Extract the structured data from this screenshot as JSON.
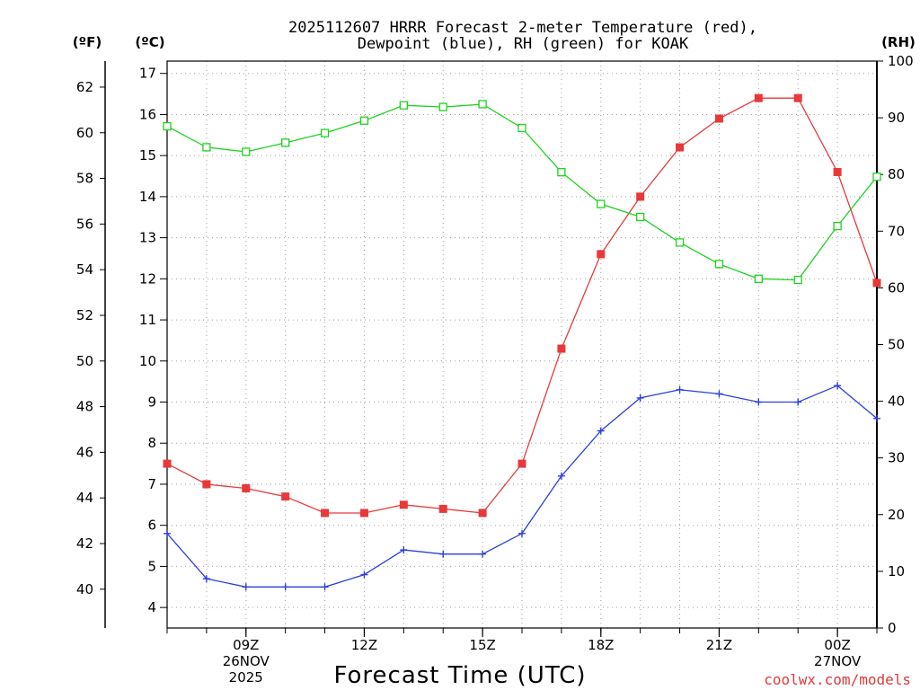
{
  "title": {
    "line1": "2025112607 HRRR Forecast 2-meter Temperature (red),",
    "line2": "Dewpoint (blue), RH (green) for KOAK"
  },
  "units": {
    "fahrenheit": "(ºF)",
    "celsius": "(ºC)",
    "rh": "(RH)"
  },
  "x_axis": {
    "title": "Forecast Time (UTC)",
    "ticks": [
      {
        "t": 9,
        "label": "09Z",
        "date": "26NOV",
        "year": "2025"
      },
      {
        "t": 12,
        "label": "12Z",
        "date": "",
        "year": ""
      },
      {
        "t": 15,
        "label": "15Z",
        "date": "",
        "year": ""
      },
      {
        "t": 18,
        "label": "18Z",
        "date": "",
        "year": ""
      },
      {
        "t": 21,
        "label": "21Z",
        "date": "",
        "year": ""
      },
      {
        "t": 24,
        "label": "00Z",
        "date": "27NOV",
        "year": ""
      }
    ]
  },
  "credit": "coolwx.com/models",
  "colors": {
    "temperature": "#e8383a",
    "dewpoint": "#2b3fe0",
    "rh": "#1fd21f",
    "grid": "#a0a0a0",
    "credit": "#e03a3a"
  },
  "chart_data": {
    "type": "line",
    "title": "2025112607 HRRR Forecast 2-meter Temperature (red), Dewpoint (blue), RH (green) for KOAK",
    "xlabel": "Forecast Time (UTC)",
    "x": [
      7,
      8,
      9,
      10,
      11,
      12,
      13,
      14,
      15,
      16,
      17,
      18,
      19,
      20,
      21,
      22,
      23,
      24,
      25
    ],
    "xlim": [
      7,
      25
    ],
    "y_left_celsius": {
      "lim": [
        3.5,
        17.3
      ],
      "ticks": [
        4,
        5,
        6,
        7,
        8,
        9,
        10,
        11,
        12,
        13,
        14,
        15,
        16,
        17
      ]
    },
    "y_left_fahrenheit": {
      "ticks": [
        40,
        42,
        44,
        46,
        48,
        50,
        52,
        54,
        56,
        58,
        60,
        62
      ]
    },
    "y_right_rh": {
      "lim": [
        0,
        100
      ],
      "ticks": [
        0,
        10,
        20,
        30,
        40,
        50,
        60,
        70,
        80,
        90,
        100
      ]
    },
    "grid": true,
    "series": [
      {
        "name": "Temperature",
        "axis": "celsius",
        "marker": "filled-square",
        "values": [
          7.5,
          7.0,
          6.9,
          6.7,
          6.3,
          6.3,
          6.5,
          6.4,
          6.3,
          7.5,
          10.3,
          12.6,
          14.0,
          15.2,
          15.9,
          16.4,
          16.4,
          14.6,
          11.9
        ]
      },
      {
        "name": "Dewpoint",
        "axis": "celsius",
        "marker": "plus",
        "values": [
          5.8,
          4.7,
          4.5,
          4.5,
          4.5,
          4.8,
          5.4,
          5.3,
          5.3,
          5.8,
          7.2,
          8.3,
          9.1,
          9.3,
          9.2,
          9.0,
          9.0,
          9.4,
          8.6
        ]
      },
      {
        "name": "RH",
        "axis": "rh",
        "marker": "open-square",
        "values": [
          88.5,
          84.8,
          84.0,
          85.6,
          87.3,
          89.5,
          92.2,
          91.9,
          92.4,
          88.2,
          80.4,
          74.8,
          72.5,
          68.0,
          64.2,
          61.6,
          61.4,
          70.9,
          79.6
        ]
      }
    ]
  }
}
